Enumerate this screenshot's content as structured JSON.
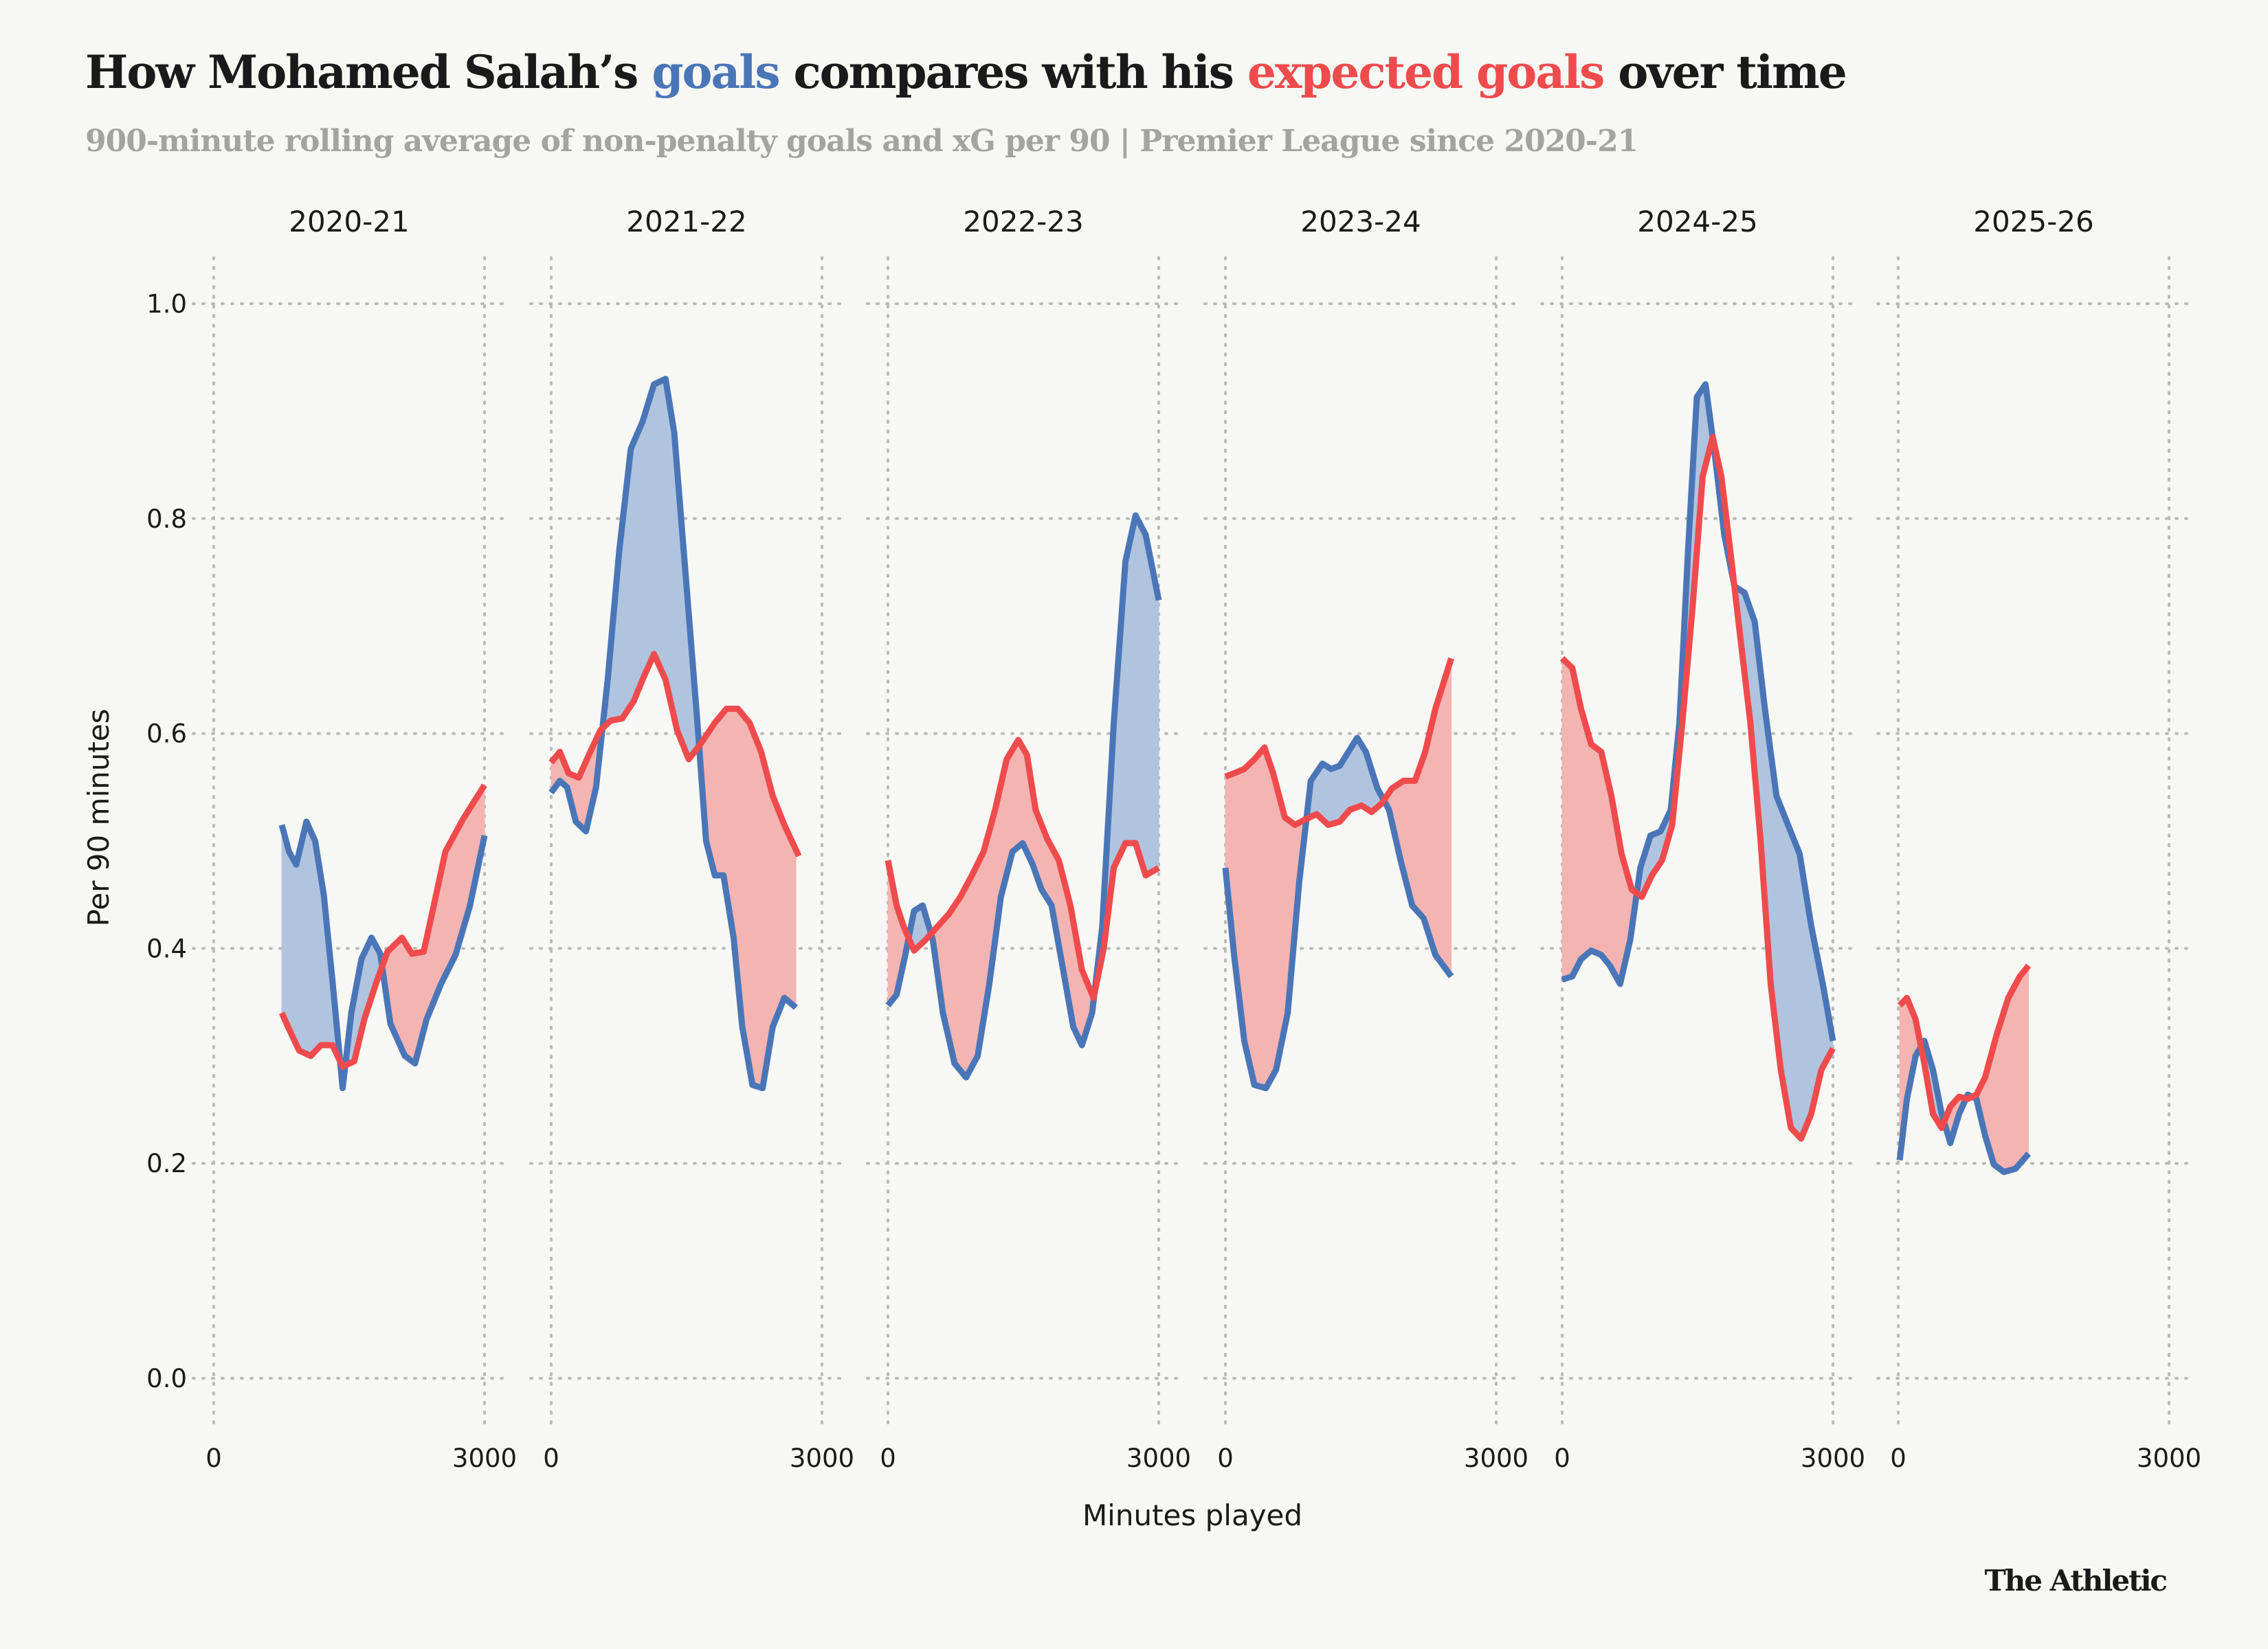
{
  "title": {
    "part1": "How Mohamed Salah’s ",
    "goals": "goals",
    "part2": " compares with his ",
    "xg": "expected goals",
    "part3": " over time"
  },
  "subtitle": "900-minute rolling average of non-penalty goals and xG per 90 | Premier League since 2020-21",
  "logo": "The Athletic",
  "colors": {
    "goals": "#4a76b8",
    "xg": "#ef4b4d",
    "goals_fill": "#b0c4df",
    "xg_fill": "#f4b4b2",
    "background": "#f7f7f3"
  },
  "chart_data": {
    "type": "line",
    "xlabel": "Minutes played",
    "ylabel": "Per 90 minutes",
    "xlim": [
      0,
      3000
    ],
    "ylim": [
      0,
      1.0
    ],
    "xticks": [
      "0",
      "3000"
    ],
    "yticks": [
      "0.0",
      "0.2",
      "0.4",
      "0.6",
      "0.8",
      "1.0"
    ],
    "grid": true,
    "fill_between": "colored by which series is higher",
    "panels": [
      {
        "season": "2020-21",
        "goals": {
          "x": [
            754,
            834,
            914,
            1027,
            1123,
            1219,
            1315,
            1428,
            1524,
            1636,
            1748,
            1845,
            1957,
            2117,
            2230,
            2358,
            2518,
            2679,
            2839,
            3000
          ],
          "y": [
            0.515,
            0.49,
            0.478,
            0.518,
            0.5,
            0.45,
            0.37,
            0.27,
            0.34,
            0.39,
            0.41,
            0.395,
            0.33,
            0.3,
            0.293,
            0.334,
            0.367,
            0.394,
            0.44,
            0.505
          ]
        },
        "xg": {
          "x": [
            754,
            834,
            946,
            1075,
            1187,
            1315,
            1428,
            1556,
            1668,
            1796,
            1925,
            2085,
            2197,
            2326,
            2438,
            2566,
            2759,
            3000
          ],
          "y": [
            0.34,
            0.325,
            0.305,
            0.3,
            0.31,
            0.31,
            0.29,
            0.295,
            0.334,
            0.367,
            0.397,
            0.41,
            0.395,
            0.397,
            0.44,
            0.49,
            0.52,
            0.552
          ]
        }
      },
      {
        "season": "2021-22",
        "goals": {
          "x": [
            0,
            96,
            176,
            273,
            385,
            497,
            626,
            754,
            882,
            1011,
            1139,
            1267,
            1363,
            1492,
            1620,
            1716,
            1813,
            1909,
            2021,
            2117,
            2230,
            2342,
            2454,
            2583,
            2711
          ],
          "y": [
            0.545,
            0.556,
            0.55,
            0.518,
            0.509,
            0.55,
            0.65,
            0.77,
            0.865,
            0.89,
            0.925,
            0.93,
            0.88,
            0.745,
            0.61,
            0.5,
            0.468,
            0.468,
            0.41,
            0.327,
            0.273,
            0.27,
            0.327,
            0.354,
            0.345
          ]
        },
        "xg": {
          "x": [
            0,
            96,
            192,
            305,
            433,
            545,
            658,
            786,
            914,
            1027,
            1139,
            1267,
            1395,
            1524,
            1652,
            1813,
            1941,
            2069,
            2197,
            2326,
            2454,
            2583,
            2743
          ],
          "y": [
            0.573,
            0.583,
            0.563,
            0.559,
            0.583,
            0.603,
            0.612,
            0.614,
            0.63,
            0.653,
            0.674,
            0.65,
            0.603,
            0.576,
            0.59,
            0.61,
            0.623,
            0.623,
            0.61,
            0.583,
            0.542,
            0.515,
            0.486
          ]
        }
      },
      {
        "season": "2022-23",
        "goals": {
          "x": [
            0,
            96,
            192,
            289,
            385,
            497,
            609,
            738,
            866,
            994,
            1123,
            1251,
            1379,
            1492,
            1604,
            1700,
            1813,
            1941,
            2053,
            2149,
            2262,
            2374,
            2502,
            2631,
            2743,
            2855,
            3000
          ],
          "y": [
            0.347,
            0.357,
            0.394,
            0.435,
            0.44,
            0.408,
            0.34,
            0.293,
            0.28,
            0.3,
            0.367,
            0.448,
            0.49,
            0.498,
            0.478,
            0.455,
            0.44,
            0.38,
            0.327,
            0.31,
            0.34,
            0.42,
            0.61,
            0.76,
            0.803,
            0.785,
            0.724
          ]
        },
        "xg": {
          "x": [
            0,
            96,
            176,
            289,
            417,
            545,
            674,
            802,
            930,
            1059,
            1187,
            1315,
            1444,
            1540,
            1636,
            1764,
            1893,
            2021,
            2149,
            2278,
            2390,
            2502,
            2631,
            2743,
            2855,
            3000
          ],
          "y": [
            0.482,
            0.44,
            0.42,
            0.398,
            0.408,
            0.42,
            0.432,
            0.448,
            0.468,
            0.49,
            0.529,
            0.576,
            0.594,
            0.58,
            0.529,
            0.502,
            0.482,
            0.44,
            0.38,
            0.354,
            0.4,
            0.475,
            0.498,
            0.498,
            0.468,
            0.475
          ]
        }
      },
      {
        "season": "2023-24",
        "goals": {
          "x": [
            0,
            96,
            209,
            321,
            449,
            561,
            690,
            818,
            946,
            1075,
            1171,
            1267,
            1363,
            1460,
            1556,
            1684,
            1813,
            1941,
            2069,
            2197,
            2326,
            2502
          ],
          "y": [
            0.475,
            0.394,
            0.314,
            0.273,
            0.27,
            0.287,
            0.34,
            0.462,
            0.556,
            0.572,
            0.567,
            0.57,
            0.583,
            0.596,
            0.583,
            0.549,
            0.529,
            0.482,
            0.44,
            0.428,
            0.394,
            0.374
          ]
        },
        "xg": {
          "x": [
            0,
            96,
            209,
            321,
            433,
            529,
            658,
            770,
            882,
            1011,
            1139,
            1267,
            1379,
            1508,
            1620,
            1732,
            1845,
            1973,
            2101,
            2214,
            2326,
            2502
          ],
          "y": [
            0.56,
            0.563,
            0.567,
            0.576,
            0.587,
            0.563,
            0.522,
            0.515,
            0.52,
            0.525,
            0.515,
            0.518,
            0.529,
            0.533,
            0.527,
            0.535,
            0.549,
            0.556,
            0.556,
            0.583,
            0.623,
            0.67
          ]
        }
      },
      {
        "season": "2024-25",
        "goals": {
          "x": [
            0,
            112,
            209,
            321,
            433,
            529,
            642,
            754,
            866,
            978,
            1091,
            1203,
            1299,
            1395,
            1492,
            1588,
            1684,
            1796,
            1909,
            2021,
            2133,
            2246,
            2374,
            2502,
            2631,
            2759,
            2887,
            3000
          ],
          "y": [
            0.371,
            0.374,
            0.39,
            0.398,
            0.394,
            0.384,
            0.367,
            0.408,
            0.475,
            0.505,
            0.509,
            0.529,
            0.61,
            0.771,
            0.913,
            0.925,
            0.865,
            0.785,
            0.737,
            0.731,
            0.704,
            0.623,
            0.542,
            0.515,
            0.488,
            0.421,
            0.367,
            0.314
          ]
        },
        "xg": {
          "x": [
            0,
            112,
            209,
            321,
            433,
            545,
            658,
            770,
            882,
            994,
            1107,
            1219,
            1331,
            1444,
            1556,
            1668,
            1764,
            1861,
            1973,
            2085,
            2197,
            2310,
            2422,
            2534,
            2647,
            2759,
            2871,
            3000
          ],
          "y": [
            0.67,
            0.661,
            0.623,
            0.59,
            0.583,
            0.542,
            0.488,
            0.455,
            0.448,
            0.468,
            0.482,
            0.515,
            0.61,
            0.717,
            0.839,
            0.876,
            0.839,
            0.771,
            0.69,
            0.61,
            0.502,
            0.367,
            0.287,
            0.233,
            0.223,
            0.246,
            0.287,
            0.307
          ]
        }
      },
      {
        "season": "2025-26",
        "goals": {
          "x": [
            16,
            96,
            192,
            289,
            385,
            481,
            577,
            674,
            770,
            866,
            962,
            1059,
            1171,
            1299,
            1444
          ],
          "y": [
            0.203,
            0.26,
            0.3,
            0.314,
            0.287,
            0.246,
            0.219,
            0.246,
            0.264,
            0.26,
            0.226,
            0.199,
            0.192,
            0.195,
            0.209
          ]
        },
        "xg": {
          "x": [
            16,
            96,
            192,
            289,
            385,
            481,
            577,
            674,
            770,
            866,
            962,
            1091,
            1219,
            1347,
            1444
          ],
          "y": [
            0.347,
            0.354,
            0.334,
            0.293,
            0.246,
            0.233,
            0.253,
            0.262,
            0.26,
            0.264,
            0.28,
            0.32,
            0.354,
            0.374,
            0.384
          ]
        }
      }
    ]
  }
}
